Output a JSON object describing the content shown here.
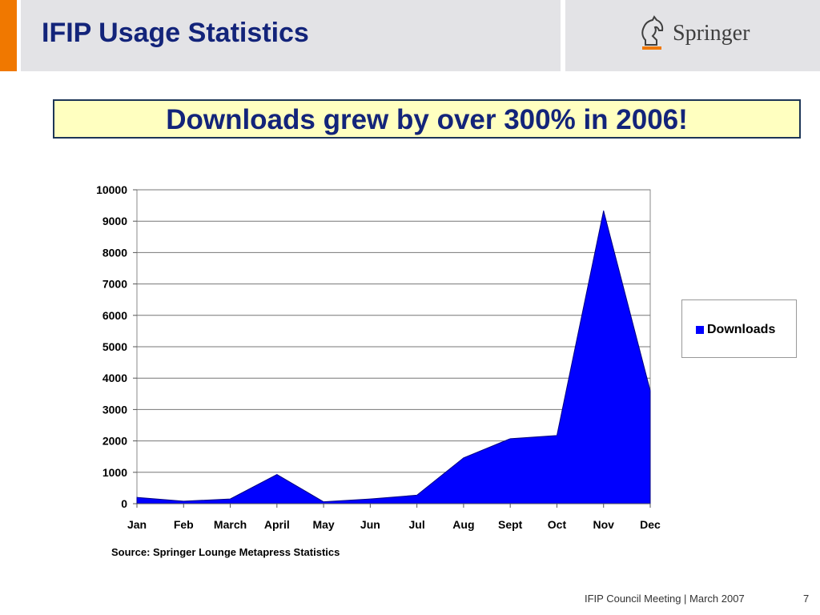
{
  "header": {
    "title": "IFIP Usage Statistics",
    "logo_text": "Springer",
    "accent_color": "#f07800",
    "title_color": "#13247a"
  },
  "headline": {
    "text": "Downloads grew by over 300% in 2006!",
    "background": "#ffffc0"
  },
  "chart_data": {
    "type": "area",
    "categories": [
      "Jan",
      "Feb",
      "March",
      "April",
      "May",
      "Jun",
      "Jul",
      "Aug",
      "Sept",
      "Oct",
      "Nov",
      "Dec"
    ],
    "series": [
      {
        "name": "Downloads",
        "values": [
          200,
          80,
          150,
          930,
          60,
          150,
          270,
          1460,
          2070,
          2170,
          9330,
          3600
        ],
        "color": "#0000ff"
      }
    ],
    "ylim": [
      0,
      10000
    ],
    "yticks": [
      0,
      1000,
      2000,
      3000,
      4000,
      5000,
      6000,
      7000,
      8000,
      9000,
      10000
    ],
    "grid": true,
    "legend": "right",
    "xlabel": "",
    "ylabel": ""
  },
  "legend": {
    "label": "Downloads"
  },
  "source_note": "Source: Springer Lounge Metapress Statistics",
  "footer": {
    "text": "IFIP Council Meeting | March 2007",
    "page": "7"
  }
}
